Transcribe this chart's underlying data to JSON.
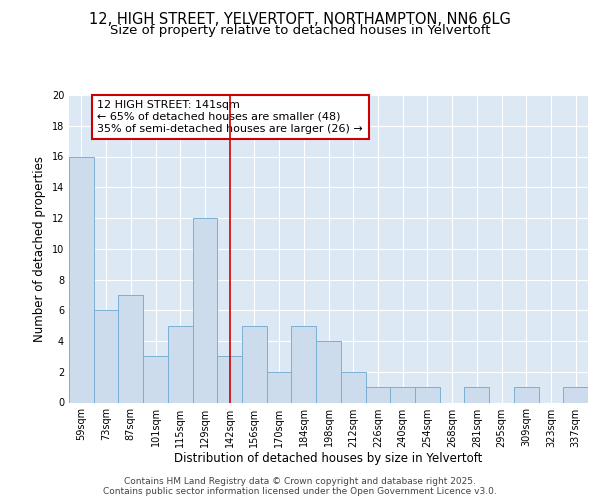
{
  "title1": "12, HIGH STREET, YELVERTOFT, NORTHAMPTON, NN6 6LG",
  "title2": "Size of property relative to detached houses in Yelvertoft",
  "xlabel": "Distribution of detached houses by size in Yelvertoft",
  "ylabel": "Number of detached properties",
  "categories": [
    "59sqm",
    "73sqm",
    "87sqm",
    "101sqm",
    "115sqm",
    "129sqm",
    "142sqm",
    "156sqm",
    "170sqm",
    "184sqm",
    "198sqm",
    "212sqm",
    "226sqm",
    "240sqm",
    "254sqm",
    "268sqm",
    "281sqm",
    "295sqm",
    "309sqm",
    "323sqm",
    "337sqm"
  ],
  "values": [
    16,
    6,
    7,
    3,
    5,
    12,
    3,
    5,
    2,
    5,
    4,
    2,
    1,
    1,
    1,
    0,
    1,
    0,
    1,
    0,
    1
  ],
  "bar_color": "#ccdcec",
  "bar_edge_color": "#7ab0d4",
  "highlight_bar_index": 6,
  "highlight_line_color": "#cc0000",
  "annotation_text": "12 HIGH STREET: 141sqm\n← 65% of detached houses are smaller (48)\n35% of semi-detached houses are larger (26) →",
  "annotation_box_color": "#ffffff",
  "annotation_box_edge_color": "#cc0000",
  "ylim": [
    0,
    20
  ],
  "yticks": [
    0,
    2,
    4,
    6,
    8,
    10,
    12,
    14,
    16,
    18,
    20
  ],
  "plot_bg_color": "#dce8f4",
  "fig_bg_color": "#ffffff",
  "footer_text": "Contains HM Land Registry data © Crown copyright and database right 2025.\nContains public sector information licensed under the Open Government Licence v3.0.",
  "title_fontsize": 10.5,
  "subtitle_fontsize": 9.5,
  "tick_fontsize": 7,
  "ylabel_fontsize": 8.5,
  "xlabel_fontsize": 8.5,
  "annotation_fontsize": 8,
  "footer_fontsize": 6.5
}
